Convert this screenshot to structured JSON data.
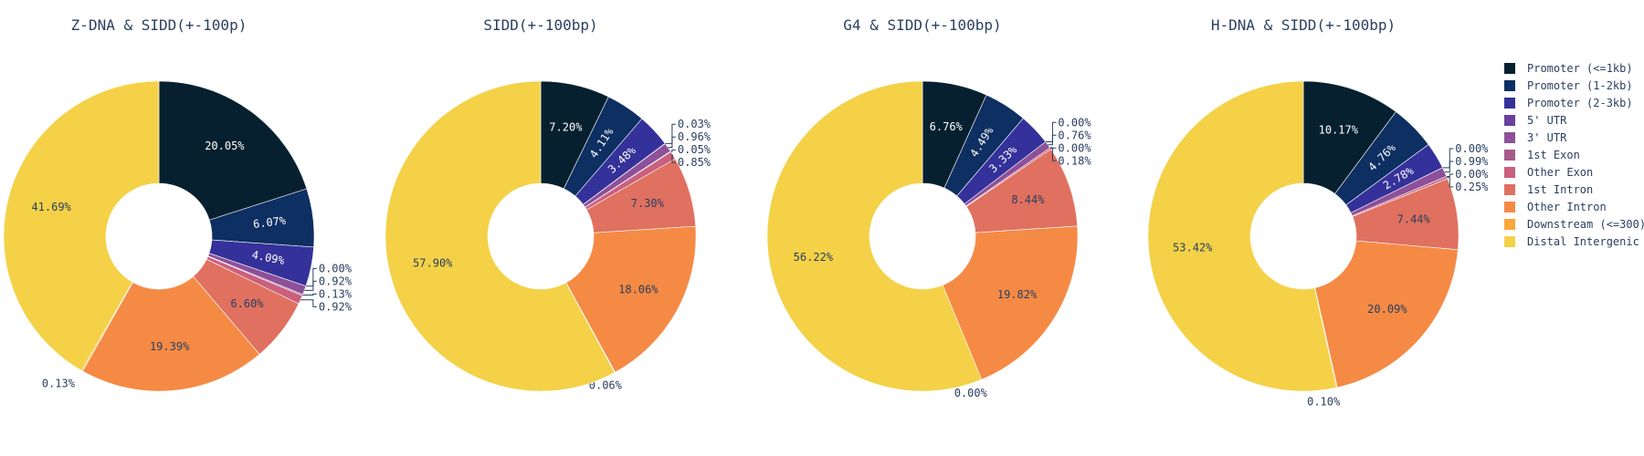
{
  "chart_data": {
    "type": "pie",
    "legend_position": "top-right",
    "categories": [
      "Promoter (<=1kb)",
      "Promoter (1-2kb)",
      "Promoter (2-3kb)",
      "5' UTR",
      "3' UTR",
      "1st Exon",
      "Other Exon",
      "1st Intron",
      "Other Intron",
      "Downstream (<=300)",
      "Distal Intergenic"
    ],
    "colors": [
      "#06202f",
      "#0d2f62",
      "#35319a",
      "#6a3fa0",
      "#8d5099",
      "#a65b8a",
      "#c9607d",
      "#e0705f",
      "#f58a45",
      "#f9a63b",
      "#f4d147"
    ],
    "charts": [
      {
        "title": "Z-DNA & SIDD(+-100p)",
        "values": [
          20.05,
          6.07,
          4.09,
          0.0,
          0.92,
          0.13,
          0.92,
          6.6,
          19.39,
          0.13,
          41.69
        ],
        "labels": [
          "20.05%",
          "6.07%",
          "4.09%",
          "0.00%",
          "0.92%",
          "0.13%",
          "0.92%",
          "6.60%",
          "19.39%",
          "0.13%",
          "41.69%"
        ]
      },
      {
        "title": "SIDD(+-100bp)",
        "values": [
          7.2,
          4.11,
          3.48,
          0.03,
          0.96,
          0.05,
          0.85,
          7.3,
          18.06,
          0.06,
          57.9
        ],
        "labels": [
          "7.20%",
          "4.11%",
          "3.48%",
          "0.03%",
          "0.96%",
          "0.05%",
          "0.85%",
          "7.30%",
          "18.06%",
          "0.06%",
          "57.90%"
        ]
      },
      {
        "title": "G4 & SIDD(+-100bp)",
        "values": [
          6.76,
          4.49,
          3.33,
          0.0,
          0.76,
          0.0,
          0.18,
          8.44,
          19.82,
          0.0,
          56.22
        ],
        "labels": [
          "6.76%",
          "4.49%",
          "3.33%",
          "0.00%",
          "0.76%",
          "0.00%",
          "0.18%",
          "8.44%",
          "19.82%",
          "0.00%",
          "56.22%"
        ]
      },
      {
        "title": "H-DNA & SIDD(+-100bp)",
        "values": [
          10.17,
          4.76,
          2.78,
          0.0,
          0.99,
          0.0,
          0.25,
          7.44,
          20.09,
          0.1,
          53.42
        ],
        "labels": [
          "10.17%",
          "4.76%",
          "2.78%",
          "0.00%",
          "0.99%",
          "0.00%",
          "0.25%",
          "7.44%",
          "20.09%",
          "0.10%",
          "53.42%"
        ]
      }
    ]
  }
}
